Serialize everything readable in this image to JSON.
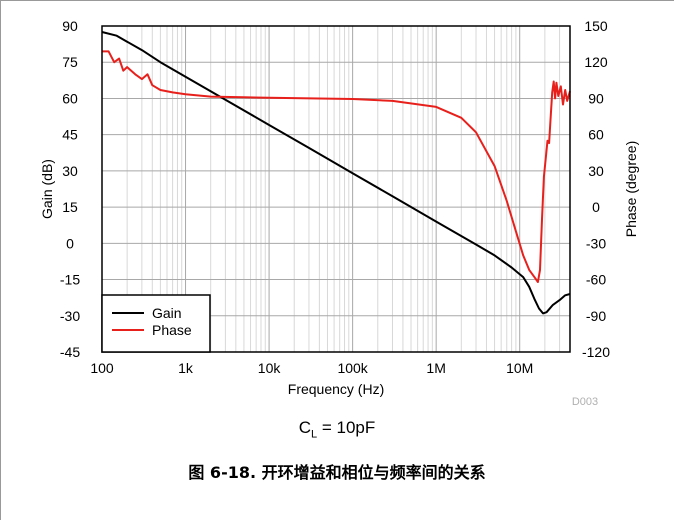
{
  "chart_data": {
    "type": "line",
    "xlabel": "Frequency (Hz)",
    "ylabel_left": "Gain (dB)",
    "ylabel_right": "Phase (degree)",
    "x_scale": "log",
    "xlim": [
      100,
      40000000
    ],
    "ylim_left": [
      -45,
      90
    ],
    "ylim_right": [
      -120,
      150
    ],
    "x_ticks": [
      {
        "value": 100,
        "label": "100"
      },
      {
        "value": 1000,
        "label": "1k"
      },
      {
        "value": 10000,
        "label": "10k"
      },
      {
        "value": 100000,
        "label": "100k"
      },
      {
        "value": 1000000,
        "label": "1M"
      },
      {
        "value": 10000000,
        "label": "10M"
      }
    ],
    "y_ticks_left": [
      90,
      75,
      60,
      45,
      30,
      15,
      0,
      -15,
      -30,
      -45
    ],
    "y_ticks_right": [
      150,
      120,
      90,
      60,
      30,
      0,
      -30,
      -60,
      -90,
      -120
    ],
    "grid": true,
    "legend_position": "bottom-left",
    "watermark": "D003",
    "series": [
      {
        "name": "Gain",
        "axis": "left",
        "color": "#000000",
        "points": [
          [
            100,
            87.5
          ],
          [
            150,
            86
          ],
          [
            200,
            83.5
          ],
          [
            300,
            80
          ],
          [
            500,
            75
          ],
          [
            1000,
            69
          ],
          [
            3000,
            59.5
          ],
          [
            10000,
            49
          ],
          [
            30000,
            39.5
          ],
          [
            100000,
            29
          ],
          [
            300000,
            19.5
          ],
          [
            1000000,
            9
          ],
          [
            3000000,
            -0.5
          ],
          [
            5000000,
            -5
          ],
          [
            8000000,
            -10
          ],
          [
            11000000,
            -14
          ],
          [
            13000000,
            -18
          ],
          [
            15000000,
            -23
          ],
          [
            17000000,
            -27
          ],
          [
            19000000,
            -29
          ],
          [
            21000000,
            -28.5
          ],
          [
            25000000,
            -25.5
          ],
          [
            30000000,
            -23.5
          ],
          [
            35000000,
            -21.5
          ],
          [
            40000000,
            -21
          ]
        ]
      },
      {
        "name": "Phase",
        "axis": "right",
        "color": "#e8201c",
        "points": [
          [
            100,
            129
          ],
          [
            120,
            129
          ],
          [
            140,
            120
          ],
          [
            160,
            123
          ],
          [
            180,
            113
          ],
          [
            200,
            116
          ],
          [
            250,
            110
          ],
          [
            300,
            106
          ],
          [
            350,
            110
          ],
          [
            400,
            101
          ],
          [
            500,
            97
          ],
          [
            700,
            95
          ],
          [
            1000,
            93.5
          ],
          [
            2000,
            91.5
          ],
          [
            5000,
            91
          ],
          [
            10000,
            90.5
          ],
          [
            100000,
            89.5
          ],
          [
            300000,
            88
          ],
          [
            1000000,
            83
          ],
          [
            2000000,
            74
          ],
          [
            3000000,
            62
          ],
          [
            5000000,
            34
          ],
          [
            7000000,
            5
          ],
          [
            9000000,
            -20
          ],
          [
            11000000,
            -40
          ],
          [
            13000000,
            -52
          ],
          [
            15000000,
            -58
          ],
          [
            16500000,
            -62
          ],
          [
            17500000,
            -52
          ],
          [
            18500000,
            -10
          ],
          [
            19500000,
            25
          ],
          [
            20500000,
            40
          ],
          [
            21500000,
            55
          ],
          [
            22500000,
            53
          ],
          [
            23500000,
            75
          ],
          [
            24500000,
            95
          ],
          [
            25500000,
            104
          ],
          [
            26500000,
            90
          ],
          [
            27500000,
            103
          ],
          [
            29000000,
            92
          ],
          [
            31000000,
            100
          ],
          [
            33000000,
            85
          ],
          [
            35000000,
            97
          ],
          [
            37000000,
            88
          ],
          [
            40000000,
            96
          ]
        ]
      }
    ]
  },
  "caption": {
    "cl_label": "C",
    "cl_sub": "L",
    "cl_value": " = 10pF",
    "figure": "图 6-18. 开环增益和相位与频率间的关系"
  }
}
